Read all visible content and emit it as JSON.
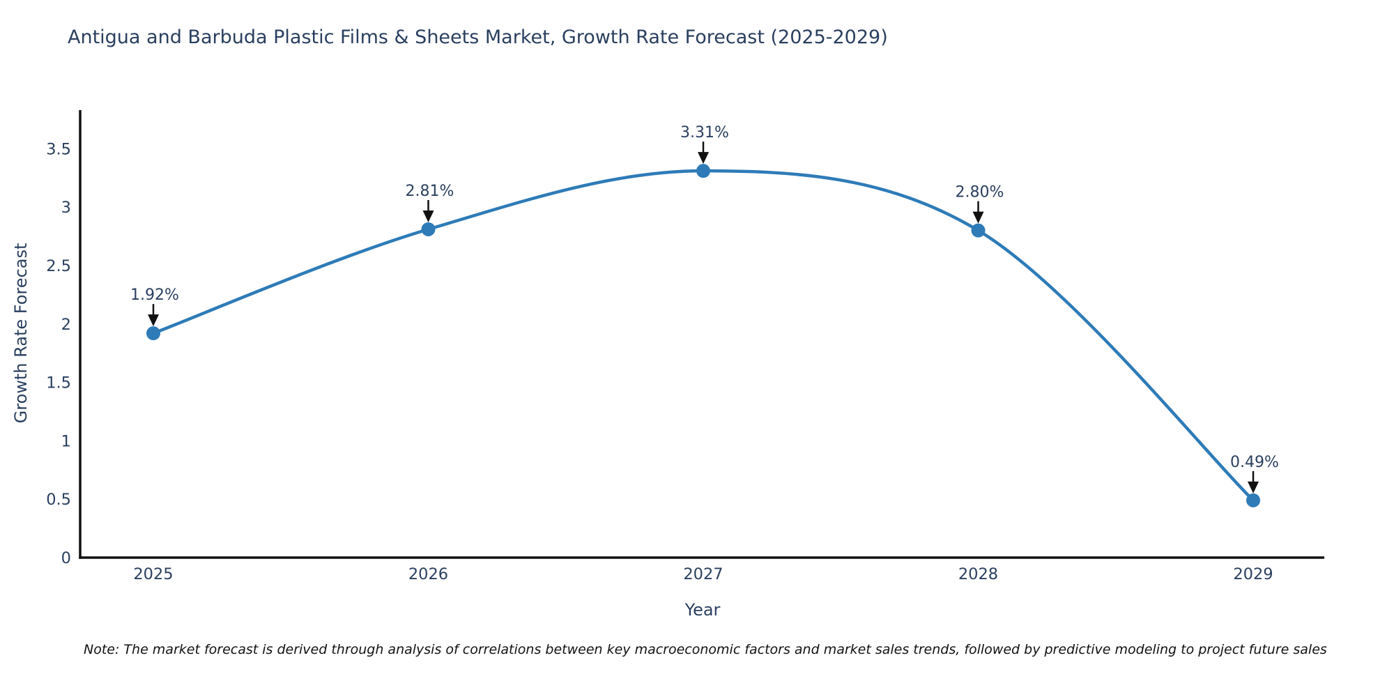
{
  "note": "Note: The market forecast is derived through analysis of correlations between key macroeconomic factors and market sales trends, followed by predictive modeling to project future sales",
  "chart_data": {
    "type": "line",
    "title": "Antigua and Barbuda Plastic Films & Sheets Market, Growth Rate Forecast (2025-2029)",
    "xlabel": "Year",
    "ylabel": "Growth Rate Forecast",
    "x": [
      "2025",
      "2026",
      "2027",
      "2028",
      "2029"
    ],
    "values": [
      1.92,
      2.81,
      3.31,
      2.8,
      0.49
    ],
    "point_labels": [
      "1.92%",
      "2.81%",
      "3.31%",
      "2.80%",
      "0.49%"
    ],
    "ylim": [
      0,
      3.83
    ],
    "yticks": [
      0,
      0.5,
      1,
      1.5,
      2,
      2.5,
      3,
      3.5
    ],
    "ytick_labels": [
      "0",
      "0.5",
      "1",
      "1.5",
      "2",
      "2.5",
      "3",
      "3.5"
    ],
    "line_shape": "spline",
    "grid": false,
    "legend_position": "none",
    "colors": {
      "line": "#2e7bb8",
      "marker": "#2e7bb8",
      "axis_line": "#111111",
      "tick_text": "#2a3f5f",
      "annotation_text": "#2a3f5f",
      "annotation_arrow": "#111111",
      "background": "#ffffff"
    }
  }
}
